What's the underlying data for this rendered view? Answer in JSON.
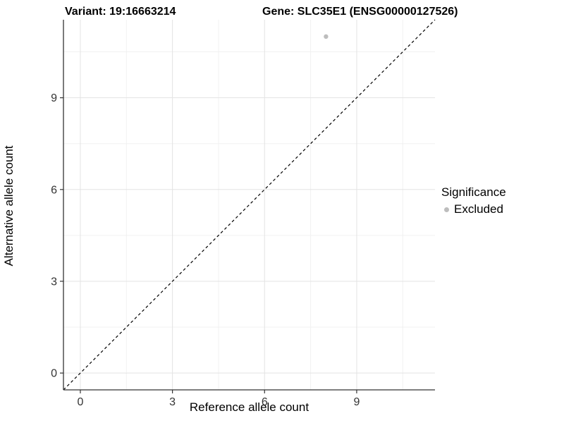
{
  "titles": {
    "variant": "Variant: 19:16663214",
    "gene": "Gene: SLC35E1 (ENSG00000127526)"
  },
  "chart_data": {
    "type": "scatter",
    "xlabel": "Reference allele count",
    "ylabel": "Alternative allele count",
    "xlim": [
      -0.55,
      11.55
    ],
    "ylim": [
      -0.55,
      11.55
    ],
    "x_ticks": [
      0,
      3,
      6,
      9
    ],
    "y_ticks": [
      0,
      3,
      6,
      9
    ],
    "minor_gridlines": [
      1.5,
      4.5,
      7.5,
      10.5
    ],
    "grid": "on",
    "legend_position": "right",
    "series": [
      {
        "name": "Excluded",
        "points": [
          {
            "x": 8,
            "y": 11
          }
        ],
        "color": "#bdbdbd"
      }
    ],
    "abline": {
      "slope": 1,
      "intercept": 0,
      "style": "dashed",
      "color": "#000000"
    },
    "legend": {
      "title": "Significance",
      "items": [
        {
          "label": "Excluded",
          "color": "#bdbdbd"
        }
      ]
    }
  },
  "colors": {
    "axis_line": "#333333",
    "tick_text": "#333333",
    "grid_major": "#e3e3e3",
    "grid_minor": "#f1f1f1",
    "background": "#ffffff",
    "point": "#bdbdbd"
  }
}
